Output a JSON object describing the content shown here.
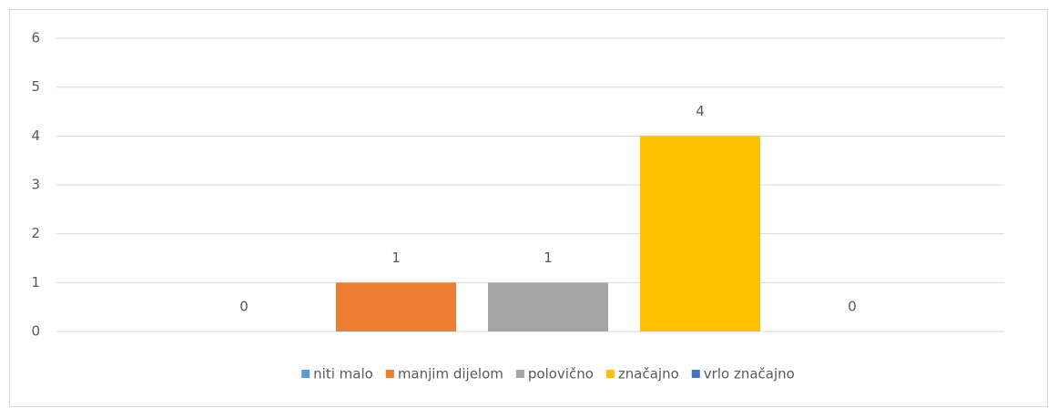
{
  "chart_data": {
    "type": "bar",
    "categories": [
      null
    ],
    "series": [
      {
        "name": "niti malo",
        "color": "#5b9bd5",
        "values": [
          0
        ]
      },
      {
        "name": "manjim dijelom",
        "color": "#ed7d31",
        "values": [
          1
        ]
      },
      {
        "name": "polovično",
        "color": "#a5a5a5",
        "values": [
          1
        ]
      },
      {
        "name": "značajno",
        "color": "#ffc000",
        "values": [
          4
        ]
      },
      {
        "name": "vrlo značajno",
        "color": "#4472c4",
        "values": [
          0
        ]
      }
    ],
    "ylim": [
      0,
      6
    ],
    "yticks": [
      0,
      1,
      2,
      3,
      4,
      5,
      6
    ],
    "grid": true,
    "legend": "bottom"
  }
}
